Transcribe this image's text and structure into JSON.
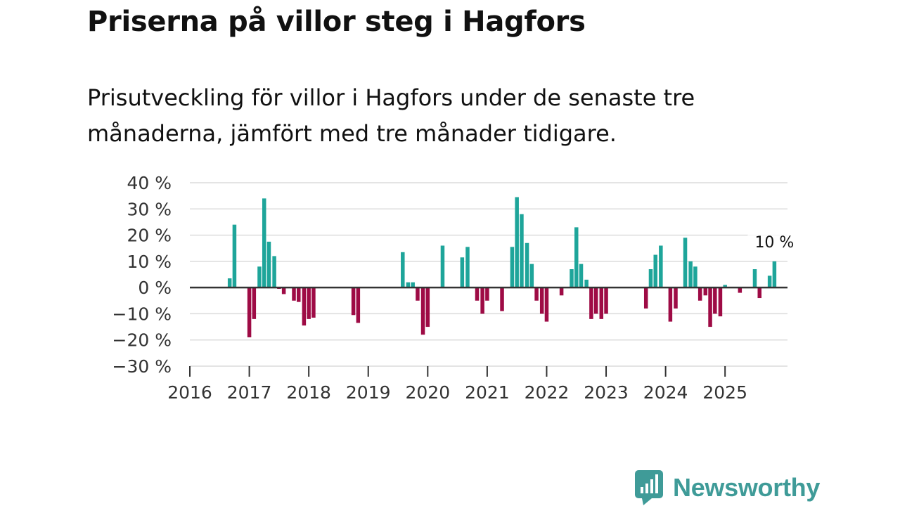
{
  "header": {
    "title": "Priserna på villor steg i Hagfors",
    "subtitle": "Prisutveckling för villor i Hagfors under de senaste tre månaderna, jämfört med tre månader tidigare."
  },
  "chart_data": {
    "type": "bar",
    "title": "Priserna på villor steg i Hagfors",
    "xlabel": "",
    "ylabel": "",
    "ylim": [
      -30,
      40
    ],
    "y_ticks": [
      40,
      30,
      20,
      10,
      0,
      -10,
      -20,
      -30
    ],
    "y_tick_labels": [
      "40 %",
      "30 %",
      "20 %",
      "10 %",
      "0 %",
      "−10 %",
      "−20 %",
      "−30 %"
    ],
    "x_tick_labels": [
      "2016",
      "2017",
      "2018",
      "2019",
      "2020",
      "2021",
      "2022",
      "2023",
      "2024",
      "2025"
    ],
    "x_start_year": 2016,
    "x_end": 2026.05,
    "colors": {
      "positive": "#1ea59a",
      "negative": "#9e0b45",
      "grid": "#dcdcdc",
      "zero_line": "#333333"
    },
    "series": [
      {
        "name": "Prisutveckling",
        "x": [
          2016.67,
          2016.75,
          2017.0,
          2017.08,
          2017.17,
          2017.25,
          2017.33,
          2017.42,
          2017.5,
          2017.58,
          2017.75,
          2017.83,
          2017.92,
          2018.0,
          2018.08,
          2018.75,
          2018.83,
          2019.58,
          2019.67,
          2019.75,
          2019.83,
          2019.92,
          2020.0,
          2020.25,
          2020.58,
          2020.67,
          2020.83,
          2020.92,
          2021.0,
          2021.25,
          2021.42,
          2021.5,
          2021.58,
          2021.67,
          2021.75,
          2021.83,
          2021.92,
          2022.0,
          2022.25,
          2022.42,
          2022.5,
          2022.58,
          2022.67,
          2022.75,
          2022.83,
          2022.92,
          2023.0,
          2023.67,
          2023.75,
          2023.83,
          2023.92,
          2024.08,
          2024.17,
          2024.33,
          2024.42,
          2024.5,
          2024.58,
          2024.67,
          2024.75,
          2024.83,
          2024.92,
          2025.0,
          2025.25,
          2025.5,
          2025.58,
          2025.75,
          2025.83
        ],
        "values": [
          3.5,
          24,
          -19,
          -12,
          8,
          34,
          17.5,
          12,
          -0.5,
          -2.5,
          -5,
          -5.5,
          -14.5,
          -12,
          -11.5,
          -10.5,
          -13.5,
          13.5,
          2,
          2,
          -5,
          -18,
          -15,
          16,
          11.5,
          15.5,
          -5,
          -10,
          -5,
          -9,
          15.5,
          34.5,
          28,
          17,
          9,
          -5,
          -10,
          -13,
          -3,
          7,
          23,
          9,
          3,
          -12,
          -10,
          -12,
          -10,
          -8,
          7,
          12.5,
          16,
          -13,
          -8,
          19,
          10,
          8,
          -5,
          -3,
          -15,
          -10,
          -11,
          1,
          -2,
          7,
          -4,
          4.5,
          10
        ]
      }
    ],
    "annotations": [
      {
        "label": "10 %",
        "x": 2025.83,
        "value": 10
      }
    ]
  },
  "logo": {
    "name": "Newsworthy"
  }
}
